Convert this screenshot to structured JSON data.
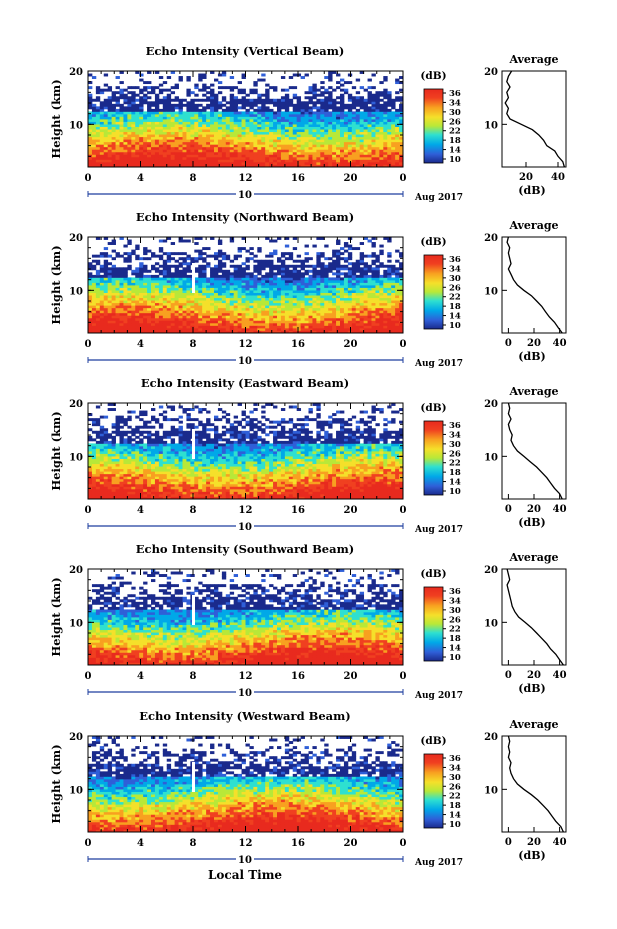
{
  "figure": {
    "panel_titles": [
      "Echo Intensity (Vertical Beam)",
      "Echo Intensity (Northward Beam)",
      "Echo Intensity (Eastward Beam)",
      "Echo Intensity (Southward Beam)",
      "Echo Intensity (Westward Beam)"
    ],
    "ylabel": "Height (km)",
    "xlabel": "Local Time",
    "day_label": "10",
    "date_label": "Aug 2017",
    "colorbar_label": "(dB)",
    "colorbar_ticks": [
      "36",
      "34",
      "30",
      "26",
      "22",
      "18",
      "14",
      "10"
    ],
    "profile_title": "Average",
    "profile_xlabel": "(dB)"
  },
  "colors": {
    "scale": [
      "#1a2a8c",
      "#2f5fd8",
      "#00a8e8",
      "#2ee0d0",
      "#b8e838",
      "#f5e02a",
      "#f8a020",
      "#f04020",
      "#e82a1e"
    ],
    "axis": "#000000",
    "date_axis": "#1f3f9f"
  },
  "chart_data": [
    {
      "type": "heatmap",
      "beam": "Vertical",
      "x": [
        0,
        4,
        8,
        12,
        16,
        20,
        0
      ],
      "x_ticks": [
        "0",
        "4",
        "8",
        "12",
        "16",
        "20",
        "0"
      ],
      "xlim": [
        0,
        24
      ],
      "ylim": [
        2,
        20
      ],
      "y_ticks": [
        "20",
        "10"
      ],
      "cbar_range": [
        10,
        36
      ],
      "profile": {
        "x_ticks": [
          "20",
          "40"
        ],
        "xlim": [
          5,
          45
        ],
        "ylim": [
          2,
          20
        ],
        "y_ticks": [
          "20",
          "10"
        ],
        "heights": [
          2,
          3,
          4,
          5,
          6,
          7,
          8,
          9,
          10,
          11,
          12,
          13,
          14,
          15,
          16,
          17,
          18,
          19,
          20
        ],
        "db": [
          44,
          43,
          40,
          38,
          33,
          31,
          28,
          24,
          17,
          10,
          8,
          9,
          7,
          9,
          8,
          10,
          8,
          9,
          11
        ]
      }
    },
    {
      "type": "heatmap",
      "beam": "Northward",
      "x_ticks": [
        "0",
        "4",
        "8",
        "12",
        "16",
        "20",
        "0"
      ],
      "xlim": [
        0,
        24
      ],
      "ylim": [
        2,
        20
      ],
      "y_ticks": [
        "20",
        "10"
      ],
      "cbar_range": [
        10,
        36
      ],
      "profile": {
        "x_ticks": [
          "0",
          "20",
          "40"
        ],
        "xlim": [
          -5,
          45
        ],
        "ylim": [
          2,
          20
        ],
        "y_ticks": [
          "20",
          "10"
        ],
        "heights": [
          2,
          3,
          4,
          5,
          6,
          7,
          8,
          9,
          10,
          11,
          12,
          13,
          14,
          15,
          16,
          17,
          18,
          19,
          20
        ],
        "db": [
          42,
          39,
          36,
          32,
          29,
          26,
          22,
          18,
          12,
          7,
          4,
          2,
          0,
          2,
          1,
          0,
          1,
          -1,
          0
        ]
      }
    },
    {
      "type": "heatmap",
      "beam": "Eastward",
      "x_ticks": [
        "0",
        "4",
        "8",
        "12",
        "16",
        "20",
        "0"
      ],
      "xlim": [
        0,
        24
      ],
      "ylim": [
        2,
        20
      ],
      "y_ticks": [
        "20",
        "10"
      ],
      "cbar_range": [
        10,
        36
      ],
      "profile": {
        "x_ticks": [
          "0",
          "20",
          "40"
        ],
        "xlim": [
          -5,
          45
        ],
        "ylim": [
          2,
          20
        ],
        "y_ticks": [
          "20",
          "10"
        ],
        "heights": [
          2,
          3,
          4,
          5,
          6,
          7,
          8,
          9,
          10,
          11,
          12,
          13,
          14,
          15,
          16,
          17,
          18,
          19,
          20
        ],
        "db": [
          42,
          40,
          36,
          33,
          30,
          26,
          22,
          17,
          12,
          7,
          4,
          2,
          3,
          1,
          0,
          2,
          0,
          1,
          0
        ]
      }
    },
    {
      "type": "heatmap",
      "beam": "Southward",
      "x_ticks": [
        "0",
        "4",
        "8",
        "12",
        "16",
        "20",
        "0"
      ],
      "xlim": [
        0,
        24
      ],
      "ylim": [
        2,
        20
      ],
      "y_ticks": [
        "20",
        "10"
      ],
      "cbar_range": [
        10,
        36
      ],
      "profile": {
        "x_ticks": [
          "0",
          "20",
          "40"
        ],
        "xlim": [
          -5,
          45
        ],
        "ylim": [
          2,
          20
        ],
        "y_ticks": [
          "20",
          "10"
        ],
        "heights": [
          2,
          3,
          4,
          5,
          6,
          7,
          8,
          9,
          10,
          11,
          12,
          13,
          14,
          15,
          16,
          17,
          18,
          19,
          20
        ],
        "db": [
          43,
          40,
          37,
          33,
          30,
          26,
          22,
          18,
          13,
          8,
          5,
          3,
          2,
          1,
          0,
          -1,
          1,
          0,
          -1
        ]
      }
    },
    {
      "type": "heatmap",
      "beam": "Westward",
      "x_ticks": [
        "0",
        "4",
        "8",
        "12",
        "16",
        "20",
        "0"
      ],
      "xlim": [
        0,
        24
      ],
      "ylim": [
        2,
        20
      ],
      "y_ticks": [
        "20",
        "10"
      ],
      "cbar_range": [
        10,
        36
      ],
      "profile": {
        "x_ticks": [
          "0",
          "20",
          "40"
        ],
        "xlim": [
          -5,
          45
        ],
        "ylim": [
          2,
          20
        ],
        "y_ticks": [
          "20",
          "10"
        ],
        "heights": [
          2,
          3,
          4,
          5,
          6,
          7,
          8,
          9,
          10,
          11,
          12,
          13,
          14,
          15,
          16,
          17,
          18,
          19,
          20
        ],
        "db": [
          43,
          41,
          37,
          34,
          31,
          27,
          23,
          18,
          12,
          7,
          4,
          2,
          1,
          2,
          0,
          1,
          0,
          1,
          0
        ]
      }
    }
  ]
}
